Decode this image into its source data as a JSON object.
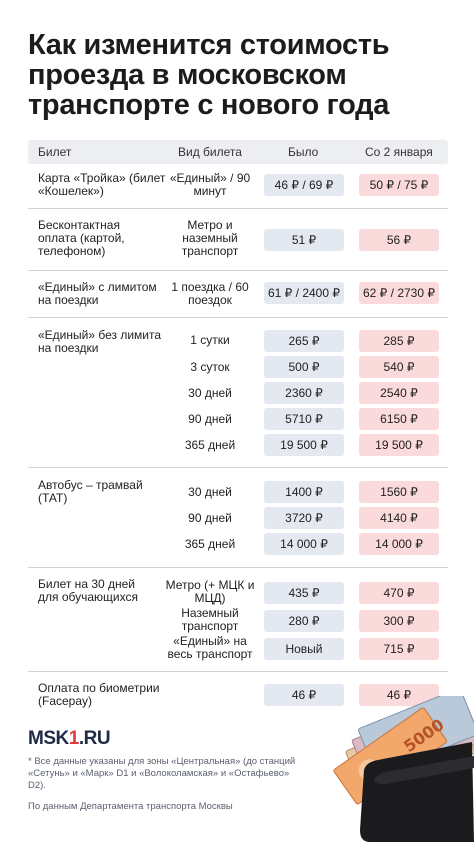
{
  "title": "Как изменится стоимость проезда в московском транспорте с нового года",
  "header": {
    "col1": "Билет",
    "col2": "Вид билета",
    "col3": "Было",
    "col4": "Со 2 января"
  },
  "rows": [
    {
      "label": "Карта «Тройка» (билет «Кошелек»)",
      "type": "«Единый» / 90 минут",
      "old": "46 ₽ / 69 ₽",
      "new": "50 ₽ / 75 ₽"
    },
    {
      "label": "Бесконтактная оплата (картой, телефоном)",
      "type": "Метро и наземный транспорт",
      "old": "51 ₽",
      "new": "56 ₽"
    },
    {
      "label": "«Единый» с лимитом на поездки",
      "type": "1 поездка / 60 поездок",
      "old": "61 ₽ / 2400 ₽",
      "new": "62 ₽ / 2730 ₽"
    },
    {
      "label": "«Единый» без лимита на поездки",
      "type": "1 сутки",
      "old": "265 ₽",
      "new": "285 ₽"
    },
    {
      "type": "3 суток",
      "old": "500 ₽",
      "new": "540 ₽"
    },
    {
      "type": "30 дней",
      "old": "2360 ₽",
      "new": "2540 ₽"
    },
    {
      "type": "90 дней",
      "old": "5710 ₽",
      "new": "6150 ₽"
    },
    {
      "type": "365 дней",
      "old": "19 500 ₽",
      "new": "19 500 ₽"
    },
    {
      "label": "Автобус – трамвай (ТАТ)",
      "type": "30 дней",
      "old": "1400 ₽",
      "new": "1560 ₽"
    },
    {
      "type": "90 дней",
      "old": "3720 ₽",
      "new": "4140 ₽"
    },
    {
      "type": "365 дней",
      "old": "14 000 ₽",
      "new": "14 000 ₽"
    },
    {
      "label": "Билет на 30 дней для обучающихся",
      "type": "Метро (+ МЦК и МЦД)",
      "old": "435 ₽",
      "new": "470 ₽"
    },
    {
      "type": "Наземный транспорт",
      "old": "280 ₽",
      "new": "300 ₽"
    },
    {
      "type": "«Единый» на весь транспорт",
      "old": "Новый",
      "new": "715 ₽"
    },
    {
      "label": "Оплата по биометрии (Facepay)",
      "old": "46 ₽",
      "new": "46 ₽"
    }
  ],
  "logo": {
    "part1": "MSK",
    "part2": "1",
    "part3": ".RU"
  },
  "footnote": "* Все данные указаны для зоны «Центральная» (до станций «Сетунь» и «Марк» D1 и «Волоколамская» и «Остафьево» D2).",
  "source": "По данным Департамента транспорта Москвы",
  "colors": {
    "old_pill": "#e4e8f0",
    "new_pill": "#fbdadc",
    "accent": "#e23a3a",
    "header_bg": "#eceef2"
  }
}
